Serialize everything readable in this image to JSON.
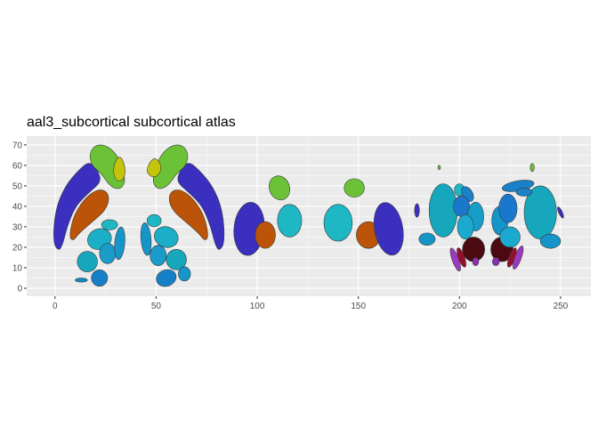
{
  "chart_data": {
    "type": "polygon-map",
    "title": "aal3_subcortical subcortical atlas",
    "xlabel": "",
    "ylabel": "",
    "xlim": [
      -14,
      265
    ],
    "ylim": [
      -3.9,
      74.3
    ],
    "x_ticks": [
      0,
      50,
      100,
      150,
      200,
      250
    ],
    "y_ticks": [
      0,
      10,
      20,
      30,
      40,
      50,
      60,
      70
    ],
    "grid": true,
    "legend": "none",
    "regions": [
      {
        "shape": "poly",
        "fill": "#3A2FBF",
        "pts": [
          [
            -1,
            22
          ],
          [
            0,
            38
          ],
          [
            5,
            50
          ],
          [
            12,
            58
          ],
          [
            17,
            62
          ],
          [
            21,
            58
          ],
          [
            23,
            52
          ],
          [
            17,
            47
          ],
          [
            10,
            40
          ],
          [
            6,
            30
          ],
          [
            4,
            22
          ],
          [
            2,
            18
          ]
        ]
      },
      {
        "shape": "poly",
        "fill": "#BB5308",
        "pts": [
          [
            7,
            25
          ],
          [
            9,
            35
          ],
          [
            14,
            43
          ],
          [
            20,
            48
          ],
          [
            25,
            48
          ],
          [
            27,
            44
          ],
          [
            25,
            38
          ],
          [
            18,
            32
          ],
          [
            12,
            27
          ],
          [
            9,
            23
          ]
        ]
      },
      {
        "shape": "poly",
        "fill": "#6CC236",
        "pts": [
          [
            17,
            66
          ],
          [
            20,
            70
          ],
          [
            25,
            70
          ],
          [
            30,
            66
          ],
          [
            33,
            60
          ],
          [
            35,
            52
          ],
          [
            32,
            48
          ],
          [
            27,
            50
          ],
          [
            23,
            56
          ],
          [
            18,
            60
          ]
        ]
      },
      {
        "shape": "poly",
        "fill": "#C4C40A",
        "pts": [
          [
            29,
            60
          ],
          [
            31,
            64
          ],
          [
            33,
            64
          ],
          [
            35,
            58
          ],
          [
            34,
            53
          ],
          [
            31,
            52
          ],
          [
            29,
            55
          ]
        ]
      },
      {
        "shape": "poly",
        "fill": "#3A2FBF",
        "pts": [
          [
            84,
            22
          ],
          [
            83,
            38
          ],
          [
            78,
            50
          ],
          [
            71,
            58
          ],
          [
            66,
            62
          ],
          [
            62,
            58
          ],
          [
            60,
            52
          ],
          [
            66,
            47
          ],
          [
            73,
            40
          ],
          [
            77,
            30
          ],
          [
            79,
            22
          ],
          [
            81,
            18
          ]
        ]
      },
      {
        "shape": "poly",
        "fill": "#BB5308",
        "pts": [
          [
            76,
            25
          ],
          [
            74,
            35
          ],
          [
            69,
            43
          ],
          [
            63,
            48
          ],
          [
            58,
            48
          ],
          [
            56,
            44
          ],
          [
            58,
            38
          ],
          [
            65,
            32
          ],
          [
            71,
            27
          ],
          [
            74,
            23
          ]
        ]
      },
      {
        "shape": "poly",
        "fill": "#6CC236",
        "pts": [
          [
            66,
            66
          ],
          [
            63,
            70
          ],
          [
            58,
            70
          ],
          [
            53,
            66
          ],
          [
            50,
            60
          ],
          [
            48,
            52
          ],
          [
            51,
            48
          ],
          [
            56,
            50
          ],
          [
            60,
            56
          ],
          [
            65,
            60
          ]
        ]
      },
      {
        "shape": "poly",
        "fill": "#C4C40A",
        "pts": [
          [
            47,
            62
          ],
          [
            50,
            64
          ],
          [
            53,
            59
          ],
          [
            51,
            55
          ],
          [
            48,
            54
          ],
          [
            45,
            57
          ]
        ]
      },
      {
        "shape": "ellipse",
        "fill": "#1DB8C4",
        "c": [
          27,
          31
        ],
        "r": [
          4,
          2.5
        ],
        "rot": 0
      },
      {
        "shape": "ellipse",
        "fill": "#1AAFC6",
        "c": [
          22,
          24
        ],
        "r": [
          6,
          5
        ],
        "rot": -20
      },
      {
        "shape": "ellipse",
        "fill": "#17A7BC",
        "c": [
          16,
          13
        ],
        "r": [
          5,
          5
        ],
        "rot": 0
      },
      {
        "shape": "ellipse",
        "fill": "#1A9CCB",
        "c": [
          26,
          17
        ],
        "r": [
          4,
          5
        ],
        "rot": 0
      },
      {
        "shape": "ellipse",
        "fill": "#1595C8",
        "c": [
          32,
          22
        ],
        "r": [
          2.5,
          8
        ],
        "rot": 5
      },
      {
        "shape": "ellipse",
        "fill": "#1488C8",
        "c": [
          13,
          4
        ],
        "r": [
          3,
          1
        ],
        "rot": 0
      },
      {
        "shape": "ellipse",
        "fill": "#1580C8",
        "c": [
          22,
          5
        ],
        "r": [
          4,
          4
        ],
        "rot": 20
      },
      {
        "shape": "ellipse",
        "fill": "#1DB8C4",
        "c": [
          49,
          33
        ],
        "r": [
          3.5,
          3
        ],
        "rot": 0
      },
      {
        "shape": "ellipse",
        "fill": "#1595C8",
        "c": [
          45,
          24
        ],
        "r": [
          2.5,
          8
        ],
        "rot": -5
      },
      {
        "shape": "ellipse",
        "fill": "#1AAFC6",
        "c": [
          55,
          25
        ],
        "r": [
          6,
          5
        ],
        "rot": 20
      },
      {
        "shape": "ellipse",
        "fill": "#17A7BC",
        "c": [
          60,
          14
        ],
        "r": [
          5,
          5
        ],
        "rot": 0
      },
      {
        "shape": "ellipse",
        "fill": "#1A9CCB",
        "c": [
          51,
          16
        ],
        "r": [
          4,
          5
        ],
        "rot": 0
      },
      {
        "shape": "ellipse",
        "fill": "#1580C8",
        "c": [
          55,
          5
        ],
        "r": [
          5,
          4
        ],
        "rot": -20
      },
      {
        "shape": "ellipse",
        "fill": "#1595C8",
        "c": [
          64,
          7
        ],
        "r": [
          3,
          3.5
        ],
        "rot": 0
      },
      {
        "shape": "ellipse",
        "fill": "#3A2FBF",
        "c": [
          96,
          29
        ],
        "r": [
          7.5,
          13
        ],
        "rot": 5
      },
      {
        "shape": "ellipse",
        "fill": "#BB5308",
        "c": [
          104,
          26
        ],
        "r": [
          5,
          6.5
        ],
        "rot": 0
      },
      {
        "shape": "ellipse",
        "fill": "#6CC236",
        "c": [
          111,
          49
        ],
        "r": [
          5,
          6
        ],
        "rot": -20
      },
      {
        "shape": "ellipse",
        "fill": "#1DB8C4",
        "c": [
          116,
          33
        ],
        "r": [
          6,
          8
        ],
        "rot": 0
      },
      {
        "shape": "ellipse",
        "fill": "#1DB8C4",
        "c": [
          140,
          32
        ],
        "r": [
          7,
          9
        ],
        "rot": 0
      },
      {
        "shape": "ellipse",
        "fill": "#6CC236",
        "c": [
          148,
          49
        ],
        "r": [
          5,
          4.5
        ],
        "rot": 0
      },
      {
        "shape": "ellipse",
        "fill": "#BB5308",
        "c": [
          155,
          26
        ],
        "r": [
          6,
          6.5
        ],
        "rot": 0
      },
      {
        "shape": "ellipse",
        "fill": "#3A2FBF",
        "c": [
          165,
          29
        ],
        "r": [
          7,
          13
        ],
        "rot": -10
      },
      {
        "shape": "ellipse",
        "fill": "#3A2FBF",
        "c": [
          179,
          38
        ],
        "r": [
          1.2,
          3.3
        ],
        "rot": 0
      },
      {
        "shape": "ellipse",
        "fill": "#1595C8",
        "c": [
          184,
          24
        ],
        "r": [
          4,
          3
        ],
        "rot": 0
      },
      {
        "shape": "ellipse",
        "fill": "#6CC236",
        "c": [
          190,
          59
        ],
        "r": [
          0.6,
          1
        ],
        "rot": 0
      },
      {
        "shape": "ellipse",
        "fill": "#17A7BC",
        "c": [
          192,
          38
        ],
        "r": [
          7,
          13
        ],
        "rot": 0
      },
      {
        "shape": "ellipse",
        "fill": "#1DB8C4",
        "c": [
          200,
          48
        ],
        "r": [
          2.5,
          3
        ],
        "rot": 0
      },
      {
        "shape": "ellipse",
        "fill": "#1A80C8",
        "c": [
          204,
          46
        ],
        "r": [
          2.5,
          4
        ],
        "rot": -30
      },
      {
        "shape": "ellipse",
        "fill": "#1A78CC",
        "c": [
          201,
          40
        ],
        "r": [
          4,
          5
        ],
        "rot": 0
      },
      {
        "shape": "ellipse",
        "fill": "#179EC8",
        "c": [
          208,
          35
        ],
        "r": [
          4,
          7
        ],
        "rot": 0
      },
      {
        "shape": "ellipse",
        "fill": "#1AAAD0",
        "c": [
          203,
          30
        ],
        "r": [
          4,
          6
        ],
        "rot": 0
      },
      {
        "shape": "ellipse",
        "fill": "#4A0A10",
        "c": [
          207,
          19
        ],
        "r": [
          5.5,
          6
        ],
        "rot": 0
      },
      {
        "shape": "ellipse",
        "fill": "#960F2C",
        "c": [
          201,
          15
        ],
        "r": [
          1.5,
          5
        ],
        "rot": -20
      },
      {
        "shape": "ellipse",
        "fill": "#9C3ABF",
        "c": [
          198,
          14
        ],
        "r": [
          1.6,
          6
        ],
        "rot": -20
      },
      {
        "shape": "ellipse",
        "fill": "#8A2FB5",
        "c": [
          208,
          13
        ],
        "r": [
          1.5,
          2
        ],
        "rot": 0
      },
      {
        "shape": "ellipse",
        "fill": "#4A0A10",
        "c": [
          221,
          19
        ],
        "r": [
          5.5,
          6
        ],
        "rot": 0
      },
      {
        "shape": "ellipse",
        "fill": "#960F2C",
        "c": [
          226,
          15
        ],
        "r": [
          1.5,
          5
        ],
        "rot": 20
      },
      {
        "shape": "ellipse",
        "fill": "#9C3ABF",
        "c": [
          229,
          15
        ],
        "r": [
          1.6,
          6
        ],
        "rot": 20
      },
      {
        "shape": "ellipse",
        "fill": "#8A2FB5",
        "c": [
          218,
          13
        ],
        "r": [
          1.7,
          2
        ],
        "rot": 0
      },
      {
        "shape": "ellipse",
        "fill": "#17A7BC",
        "c": [
          240,
          37
        ],
        "r": [
          8,
          13
        ],
        "rot": 0
      },
      {
        "shape": "ellipse",
        "fill": "#1A80C8",
        "c": [
          229,
          50
        ],
        "r": [
          8,
          2.5
        ],
        "rot": -10
      },
      {
        "shape": "ellipse",
        "fill": "#1595C8",
        "c": [
          220,
          33
        ],
        "r": [
          4,
          7
        ],
        "rot": 0
      },
      {
        "shape": "ellipse",
        "fill": "#1A78CC",
        "c": [
          224,
          39
        ],
        "r": [
          4.5,
          7
        ],
        "rot": 0
      },
      {
        "shape": "ellipse",
        "fill": "#1AAAD0",
        "c": [
          225,
          25
        ],
        "r": [
          5,
          5
        ],
        "rot": 0
      },
      {
        "shape": "ellipse",
        "fill": "#1A80C8",
        "c": [
          232,
          47
        ],
        "r": [
          4,
          2
        ],
        "rot": 0
      },
      {
        "shape": "ellipse",
        "fill": "#6CC236",
        "c": [
          236,
          59
        ],
        "r": [
          1,
          2
        ],
        "rot": 0
      },
      {
        "shape": "ellipse",
        "fill": "#1595C8",
        "c": [
          245,
          23
        ],
        "r": [
          5,
          3.5
        ],
        "rot": 0
      },
      {
        "shape": "ellipse",
        "fill": "#3A2FBF",
        "c": [
          250,
          37
        ],
        "r": [
          0.9,
          3
        ],
        "rot": -25
      }
    ]
  }
}
